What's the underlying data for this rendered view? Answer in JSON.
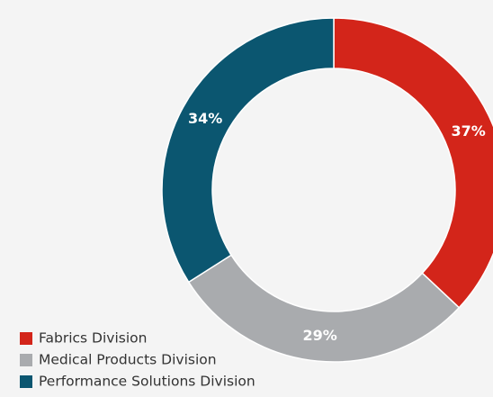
{
  "chart_data": {
    "type": "pie",
    "categories": [
      "Fabrics Division",
      "Medical Products Division",
      "Performance Solutions Division"
    ],
    "values": [
      37,
      29,
      34
    ],
    "value_labels": [
      "37%",
      "29%",
      "34%"
    ],
    "colors": [
      "#d3251a",
      "#a9abae",
      "#0b5670"
    ],
    "donut": true
  }
}
